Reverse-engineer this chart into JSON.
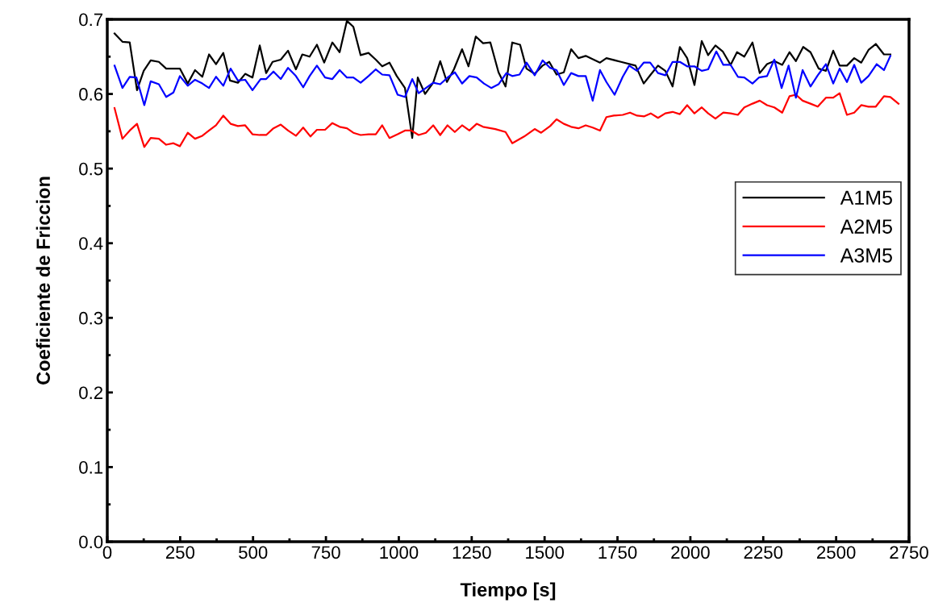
{
  "chart_data": {
    "type": "line",
    "xlabel": "Tiempo [s]",
    "ylabel": "Coeficiente de Friccion",
    "xlim": [
      0,
      2750
    ],
    "xticks": [
      0,
      250,
      500,
      750,
      1000,
      1250,
      1500,
      1750,
      2000,
      2250,
      2500,
      2750
    ],
    "ylim": [
      0,
      0.7
    ],
    "yticks": [
      {
        "value": 0,
        "label": "0.0"
      },
      {
        "value": 0.1,
        "label": "0.1"
      },
      {
        "value": 0.2,
        "label": "0.2"
      },
      {
        "value": 0.3,
        "label": "0.3"
      },
      {
        "value": 0.4,
        "label": "0.4"
      },
      {
        "value": 0.5,
        "label": "0.5"
      },
      {
        "value": 0.6,
        "label": "0.6"
      },
      {
        "value": 0.7,
        "label": "0.7"
      }
    ],
    "grid": false,
    "legend": "right",
    "marker": "none",
    "line_style": "solid",
    "series": [
      {
        "name": "A1M5",
        "color": "#000000",
        "x": [
          25,
          52,
          77,
          102,
          125,
          149,
          177,
          202,
          249,
          276,
          301,
          326,
          349,
          373,
          398,
          421,
          448,
          473,
          498,
          523,
          545,
          567,
          595,
          620,
          647,
          669,
          694,
          719,
          744,
          772,
          797,
          822,
          844,
          869,
          896,
          921,
          943,
          968,
          993,
          1021,
          1046,
          1065,
          1090,
          1118,
          1142,
          1165,
          1189,
          1217,
          1239,
          1264,
          1289,
          1314,
          1342,
          1366,
          1389,
          1416,
          1438,
          1466,
          1493,
          1516,
          1541,
          1566,
          1591,
          1616,
          1641,
          1690,
          1712,
          1762,
          1812,
          1840,
          1864,
          1889,
          1914,
          1939,
          1964,
          1989,
          2014,
          2039,
          2061,
          2086,
          2111,
          2138,
          2160,
          2185,
          2213,
          2238,
          2263,
          2288,
          2315,
          2340,
          2362,
          2387,
          2412,
          2440,
          2465,
          2490,
          2512,
          2537,
          2562,
          2586,
          2611,
          2636,
          2664,
          2686
        ],
        "values": [
          0.681,
          0.67,
          0.669,
          0.605,
          0.631,
          0.645,
          0.643,
          0.634,
          0.634,
          0.614,
          0.632,
          0.623,
          0.653,
          0.64,
          0.655,
          0.618,
          0.615,
          0.627,
          0.622,
          0.665,
          0.628,
          0.643,
          0.646,
          0.658,
          0.633,
          0.653,
          0.65,
          0.666,
          0.642,
          0.669,
          0.656,
          0.698,
          0.69,
          0.652,
          0.655,
          0.646,
          0.637,
          0.642,
          0.624,
          0.608,
          0.541,
          0.622,
          0.6,
          0.615,
          0.644,
          0.616,
          0.633,
          0.66,
          0.637,
          0.677,
          0.668,
          0.669,
          0.629,
          0.61,
          0.669,
          0.666,
          0.634,
          0.627,
          0.638,
          0.643,
          0.626,
          0.629,
          0.66,
          0.648,
          0.651,
          0.642,
          0.648,
          0.643,
          0.638,
          0.614,
          0.626,
          0.638,
          0.631,
          0.61,
          0.663,
          0.648,
          0.612,
          0.671,
          0.652,
          0.665,
          0.657,
          0.639,
          0.656,
          0.65,
          0.669,
          0.628,
          0.64,
          0.644,
          0.639,
          0.656,
          0.644,
          0.663,
          0.656,
          0.634,
          0.631,
          0.658,
          0.638,
          0.638,
          0.648,
          0.642,
          0.659,
          0.667,
          0.653,
          0.653
        ]
      },
      {
        "name": "A2M5",
        "color": "#ff0000",
        "x": [
          25,
          52,
          77,
          102,
          127,
          149,
          177,
          202,
          227,
          249,
          276,
          301,
          326,
          349,
          373,
          398,
          423,
          448,
          473,
          498,
          523,
          545,
          570,
          595,
          620,
          647,
          672,
          697,
          719,
          747,
          772,
          797,
          822,
          844,
          869,
          896,
          921,
          943,
          968,
          996,
          1021,
          1043,
          1068,
          1093,
          1118,
          1142,
          1167,
          1192,
          1217,
          1242,
          1267,
          1289,
          1331,
          1366,
          1389,
          1430,
          1466,
          1488,
          1519,
          1541,
          1566,
          1591,
          1616,
          1641,
          1665,
          1690,
          1712,
          1737,
          1768,
          1793,
          1817,
          1842,
          1864,
          1889,
          1914,
          1939,
          1964,
          1989,
          2014,
          2039,
          2061,
          2086,
          2113,
          2138,
          2163,
          2185,
          2213,
          2238,
          2263,
          2288,
          2315,
          2340,
          2362,
          2385,
          2412,
          2437,
          2465,
          2490,
          2512,
          2537,
          2562,
          2586,
          2611,
          2636,
          2664,
          2686,
          2714
        ],
        "values": [
          0.581,
          0.54,
          0.551,
          0.56,
          0.529,
          0.541,
          0.54,
          0.532,
          0.534,
          0.53,
          0.548,
          0.54,
          0.544,
          0.551,
          0.558,
          0.571,
          0.56,
          0.557,
          0.558,
          0.546,
          0.545,
          0.545,
          0.554,
          0.559,
          0.551,
          0.544,
          0.555,
          0.543,
          0.552,
          0.552,
          0.561,
          0.556,
          0.554,
          0.548,
          0.545,
          0.546,
          0.546,
          0.558,
          0.541,
          0.546,
          0.551,
          0.551,
          0.545,
          0.548,
          0.558,
          0.545,
          0.558,
          0.549,
          0.558,
          0.551,
          0.56,
          0.556,
          0.553,
          0.549,
          0.534,
          0.543,
          0.553,
          0.548,
          0.557,
          0.566,
          0.56,
          0.556,
          0.554,
          0.558,
          0.555,
          0.551,
          0.569,
          0.571,
          0.572,
          0.575,
          0.571,
          0.57,
          0.574,
          0.568,
          0.574,
          0.576,
          0.573,
          0.585,
          0.574,
          0.582,
          0.574,
          0.567,
          0.575,
          0.574,
          0.572,
          0.582,
          0.587,
          0.591,
          0.585,
          0.582,
          0.575,
          0.597,
          0.599,
          0.591,
          0.587,
          0.583,
          0.595,
          0.595,
          0.601,
          0.572,
          0.575,
          0.585,
          0.583,
          0.583,
          0.597,
          0.596,
          0.587
        ]
      },
      {
        "name": "A3M5",
        "color": "#0000ff",
        "x": [
          25,
          52,
          77,
          100,
          127,
          149,
          177,
          202,
          227,
          249,
          276,
          301,
          326,
          349,
          373,
          398,
          423,
          448,
          473,
          498,
          526,
          545,
          570,
          595,
          620,
          647,
          672,
          694,
          719,
          747,
          772,
          797,
          822,
          844,
          869,
          896,
          921,
          943,
          968,
          996,
          1021,
          1046,
          1068,
          1093,
          1118,
          1142,
          1167,
          1192,
          1217,
          1242,
          1267,
          1292,
          1317,
          1342,
          1369,
          1389,
          1414,
          1438,
          1466,
          1493,
          1519,
          1541,
          1566,
          1591,
          1616,
          1641,
          1665,
          1690,
          1712,
          1740,
          1768,
          1790,
          1817,
          1840,
          1862,
          1889,
          1914,
          1939,
          1964,
          1989,
          2014,
          2039,
          2061,
          2089,
          2113,
          2138,
          2163,
          2185,
          2213,
          2235,
          2263,
          2288,
          2313,
          2337,
          2362,
          2385,
          2412,
          2437,
          2465,
          2490,
          2512,
          2537,
          2562,
          2586,
          2611,
          2639,
          2664,
          2686
        ],
        "values": [
          0.638,
          0.608,
          0.623,
          0.622,
          0.585,
          0.617,
          0.613,
          0.596,
          0.602,
          0.624,
          0.611,
          0.619,
          0.614,
          0.608,
          0.623,
          0.611,
          0.634,
          0.618,
          0.619,
          0.605,
          0.62,
          0.62,
          0.63,
          0.62,
          0.635,
          0.624,
          0.609,
          0.624,
          0.638,
          0.622,
          0.62,
          0.632,
          0.622,
          0.622,
          0.615,
          0.624,
          0.633,
          0.626,
          0.625,
          0.599,
          0.596,
          0.62,
          0.601,
          0.608,
          0.615,
          0.613,
          0.622,
          0.629,
          0.614,
          0.624,
          0.622,
          0.614,
          0.608,
          0.613,
          0.628,
          0.624,
          0.626,
          0.642,
          0.625,
          0.645,
          0.635,
          0.632,
          0.612,
          0.628,
          0.624,
          0.624,
          0.591,
          0.632,
          0.616,
          0.599,
          0.623,
          0.638,
          0.631,
          0.642,
          0.642,
          0.628,
          0.625,
          0.643,
          0.643,
          0.637,
          0.637,
          0.631,
          0.633,
          0.657,
          0.639,
          0.639,
          0.623,
          0.622,
          0.614,
          0.622,
          0.624,
          0.646,
          0.608,
          0.638,
          0.595,
          0.632,
          0.61,
          0.625,
          0.64,
          0.614,
          0.634,
          0.616,
          0.639,
          0.615,
          0.624,
          0.64,
          0.632,
          0.651
        ]
      }
    ]
  }
}
